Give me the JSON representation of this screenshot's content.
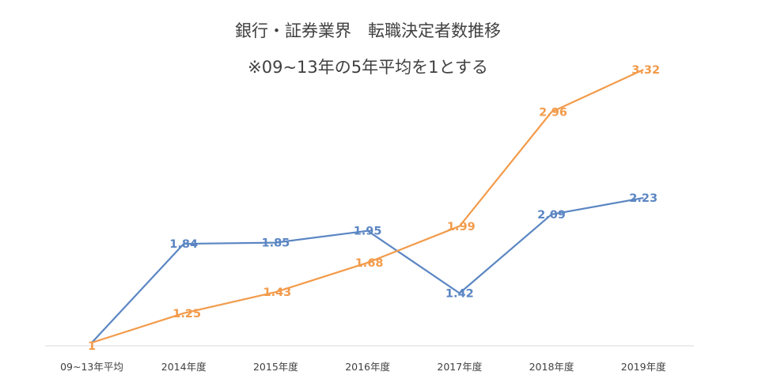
{
  "chart_data": {
    "type": "line",
    "title": "銀行・証券業界　転職決定者数推移",
    "subtitle": "※09~13年の5年平均を1とする",
    "categories": [
      "09~13年平均",
      "2014年度",
      "2015年度",
      "2016年度",
      "2017年度",
      "2018年度",
      "2019年度"
    ],
    "series": [
      {
        "name": "series-blue",
        "color": "#5b86c3",
        "values": [
          1,
          1.84,
          1.85,
          1.95,
          1.42,
          2.09,
          2.23
        ],
        "labels": [
          "",
          "1.84",
          "1.85",
          "1.95",
          "1.42",
          "2.09",
          "2.23"
        ]
      },
      {
        "name": "series-orange",
        "color": "#f29b4b",
        "values": [
          1,
          1.25,
          1.43,
          1.68,
          1.99,
          2.96,
          3.32
        ],
        "labels": [
          "1",
          "1.25",
          "1.43",
          "1.68",
          "1.99",
          "2.96",
          "3.32"
        ]
      }
    ],
    "ylim": [
      1,
      3.32
    ],
    "axis_color": "#d9d9d9",
    "grid": false,
    "legend": "none",
    "xlabel": "",
    "ylabel": ""
  }
}
